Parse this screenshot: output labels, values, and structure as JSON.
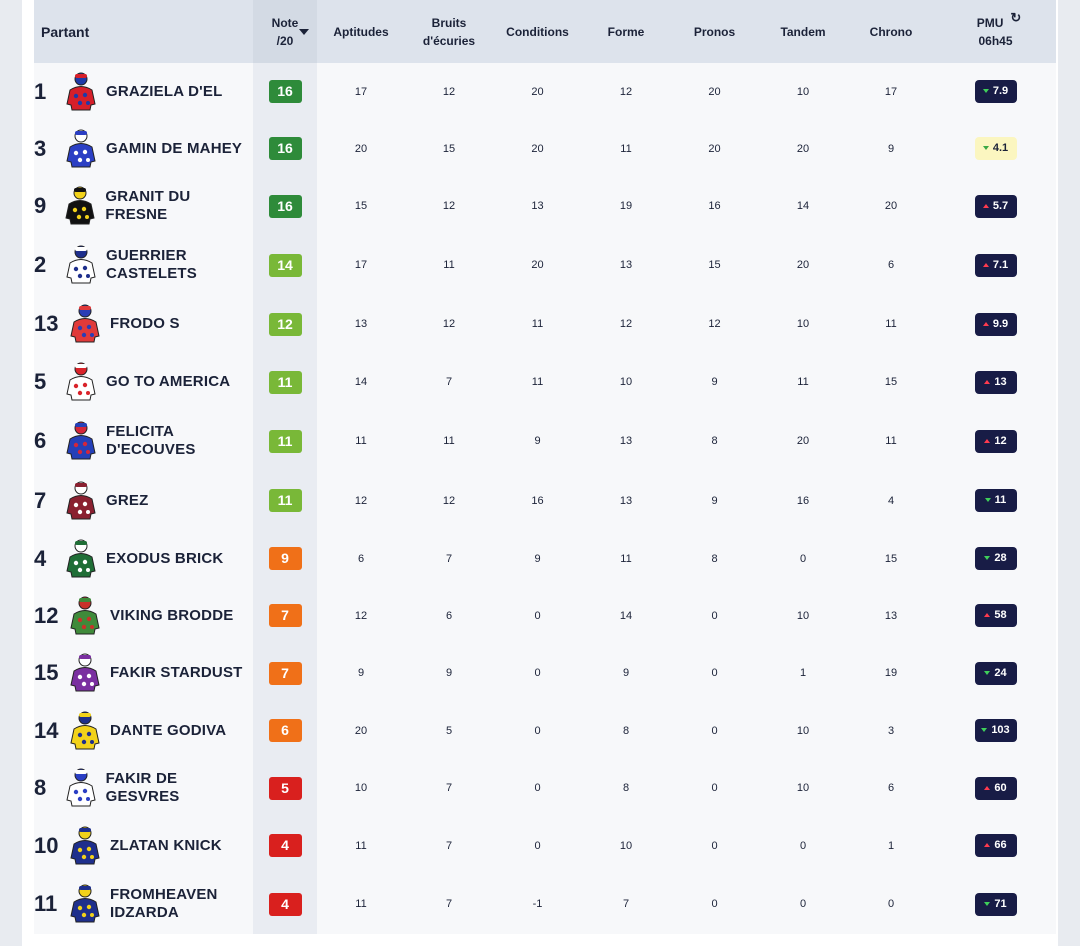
{
  "headers": {
    "partant": "Partant",
    "note_line1": "Note",
    "note_line2": "/20",
    "aptitudes": "Aptitudes",
    "bruits_line1": "Bruits",
    "bruits_line2": "d'écuries",
    "conditions": "Conditions",
    "forme": "Forme",
    "pronos": "Pronos",
    "tandem": "Tandem",
    "chrono": "Chrono",
    "pmu_line1": "PMU",
    "pmu_line2": "06h45",
    "refresh_icon": "refresh-icon",
    "sort_icon": "sort-down-icon"
  },
  "runners": [
    {
      "num": "1",
      "name_lines": [
        "GRAZIELA D'EL"
      ],
      "note": "16",
      "note_color": "#2e8b3a",
      "aptitudes": "17",
      "bruits": "12",
      "conditions": "20",
      "forme": "12",
      "pronos": "20",
      "tandem": "10",
      "chrono": "17",
      "pmu": "7.9",
      "trend": "down",
      "silk_colors": [
        "#d61f2a",
        "#1e3aa8"
      ]
    },
    {
      "num": "3",
      "name_lines": [
        "GAMIN DE MAHEY"
      ],
      "note": "16",
      "note_color": "#2e8b3a",
      "aptitudes": "20",
      "bruits": "15",
      "conditions": "20",
      "forme": "11",
      "pronos": "20",
      "tandem": "20",
      "chrono": "9",
      "pmu": "4.1",
      "trend": "down",
      "highlight": true,
      "silk_colors": [
        "#2b3fc4",
        "#ffffff"
      ]
    },
    {
      "num": "9",
      "name_lines": [
        "GRANIT DU FRESNE"
      ],
      "note": "16",
      "note_color": "#2e8b3a",
      "aptitudes": "15",
      "bruits": "12",
      "conditions": "13",
      "forme": "19",
      "pronos": "16",
      "tandem": "14",
      "chrono": "20",
      "pmu": "5.7",
      "trend": "up",
      "silk_colors": [
        "#111111",
        "#f2d21a"
      ]
    },
    {
      "num": "2",
      "name_lines": [
        "GUERRIER",
        "CASTELETS"
      ],
      "note": "14",
      "note_color": "#79b838",
      "aptitudes": "17",
      "bruits": "11",
      "conditions": "20",
      "forme": "13",
      "pronos": "15",
      "tandem": "20",
      "chrono": "6",
      "pmu": "7.1",
      "trend": "up",
      "silk_colors": [
        "#ffffff",
        "#1e2f8c"
      ]
    },
    {
      "num": "13",
      "name_lines": [
        "FRODO S"
      ],
      "note": "12",
      "note_color": "#79b838",
      "aptitudes": "13",
      "bruits": "12",
      "conditions": "11",
      "forme": "12",
      "pronos": "12",
      "tandem": "10",
      "chrono": "11",
      "pmu": "9.9",
      "trend": "up",
      "silk_colors": [
        "#e03a3a",
        "#2a3db5"
      ]
    },
    {
      "num": "5",
      "name_lines": [
        "GO TO AMERICA"
      ],
      "note": "11",
      "note_color": "#79b838",
      "aptitudes": "14",
      "bruits": "7",
      "conditions": "11",
      "forme": "10",
      "pronos": "9",
      "tandem": "11",
      "chrono": "15",
      "pmu": "13",
      "trend": "up",
      "silk_colors": [
        "#ffffff",
        "#d9232a"
      ]
    },
    {
      "num": "6",
      "name_lines": [
        "FELICITA",
        "D'ECOUVES"
      ],
      "note": "11",
      "note_color": "#79b838",
      "aptitudes": "11",
      "bruits": "11",
      "conditions": "9",
      "forme": "13",
      "pronos": "8",
      "tandem": "20",
      "chrono": "11",
      "pmu": "12",
      "trend": "up",
      "silk_colors": [
        "#2540b8",
        "#d4263a"
      ]
    },
    {
      "num": "7",
      "name_lines": [
        "GREZ"
      ],
      "note": "11",
      "note_color": "#79b838",
      "aptitudes": "12",
      "bruits": "12",
      "conditions": "16",
      "forme": "13",
      "pronos": "9",
      "tandem": "16",
      "chrono": "4",
      "pmu": "11",
      "trend": "down",
      "silk_colors": [
        "#8a2030",
        "#ffffff"
      ]
    },
    {
      "num": "4",
      "name_lines": [
        "EXODUS BRICK"
      ],
      "note": "9",
      "note_color": "#f07018",
      "aptitudes": "6",
      "bruits": "7",
      "conditions": "9",
      "forme": "11",
      "pronos": "8",
      "tandem": "0",
      "chrono": "15",
      "pmu": "28",
      "trend": "down",
      "silk_colors": [
        "#1f6e36",
        "#ffffff"
      ]
    },
    {
      "num": "12",
      "name_lines": [
        "VIKING BRODDE"
      ],
      "note": "7",
      "note_color": "#f07018",
      "aptitudes": "12",
      "bruits": "6",
      "conditions": "0",
      "forme": "14",
      "pronos": "0",
      "tandem": "10",
      "chrono": "13",
      "pmu": "58",
      "trend": "up",
      "silk_colors": [
        "#3f8a3a",
        "#c8322a"
      ]
    },
    {
      "num": "15",
      "name_lines": [
        "FAKIR STARDUST"
      ],
      "note": "7",
      "note_color": "#f07018",
      "aptitudes": "9",
      "bruits": "9",
      "conditions": "0",
      "forme": "9",
      "pronos": "0",
      "tandem": "1",
      "chrono": "19",
      "pmu": "24",
      "trend": "down",
      "silk_colors": [
        "#7a2fa0",
        "#ffffff"
      ]
    },
    {
      "num": "14",
      "name_lines": [
        "DANTE GODIVA"
      ],
      "note": "6",
      "note_color": "#f07018",
      "aptitudes": "20",
      "bruits": "5",
      "conditions": "0",
      "forme": "8",
      "pronos": "0",
      "tandem": "10",
      "chrono": "3",
      "pmu": "103",
      "trend": "down",
      "silk_colors": [
        "#f2d21a",
        "#1e2f8c"
      ]
    },
    {
      "num": "8",
      "name_lines": [
        "FAKIR DE GESVRES"
      ],
      "note": "5",
      "note_color": "#d9201e",
      "aptitudes": "10",
      "bruits": "7",
      "conditions": "0",
      "forme": "8",
      "pronos": "0",
      "tandem": "10",
      "chrono": "6",
      "pmu": "60",
      "trend": "up",
      "silk_colors": [
        "#ffffff",
        "#2b3fc4"
      ]
    },
    {
      "num": "10",
      "name_lines": [
        "ZLATAN KNICK"
      ],
      "note": "4",
      "note_color": "#d9201e",
      "aptitudes": "11",
      "bruits": "7",
      "conditions": "0",
      "forme": "10",
      "pronos": "0",
      "tandem": "0",
      "chrono": "1",
      "pmu": "66",
      "trend": "up",
      "silk_colors": [
        "#1e2f8c",
        "#f2d21a"
      ]
    },
    {
      "num": "11",
      "name_lines": [
        "FROMHEAVEN",
        "IDZARDA"
      ],
      "note": "4",
      "note_color": "#d9201e",
      "aptitudes": "11",
      "bruits": "7",
      "conditions": "-1",
      "forme": "7",
      "pronos": "0",
      "tandem": "0",
      "chrono": "0",
      "pmu": "71",
      "trend": "down",
      "silk_colors": [
        "#1e2f8c",
        "#f2d21a"
      ]
    }
  ]
}
